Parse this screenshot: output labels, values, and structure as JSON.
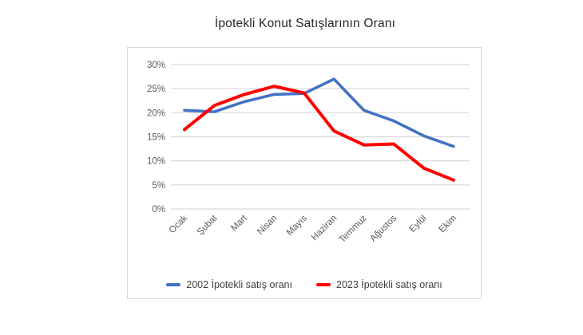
{
  "title": "İpotekli Konut Satışlarının Oranı",
  "chart_data": {
    "type": "line",
    "title": "İpotekli Konut Satışlarının Oranı",
    "categories": [
      "Ocak",
      "Şubat",
      "Mart",
      "Nisan",
      "Mayıs",
      "Haziran",
      "Temmuz",
      "Ağustos",
      "Eylül",
      "Ekim"
    ],
    "series": [
      {
        "name": "2002 İpotekli satış oranı",
        "color": "#4472C4",
        "values": [
          20.5,
          20.2,
          22.3,
          23.8,
          24.0,
          27.0,
          20.5,
          18.3,
          15.2,
          13.0
        ]
      },
      {
        "name": "2023 İpotekli satış oranı",
        "color": "#FF0000",
        "values": [
          16.5,
          21.5,
          23.8,
          25.5,
          24.1,
          16.2,
          13.3,
          13.5,
          8.5,
          6.0
        ]
      }
    ],
    "xlabel": "",
    "ylabel": "",
    "ylim": [
      0,
      30
    ],
    "yticks": [
      {
        "value": 0,
        "label": "0%"
      },
      {
        "value": 5,
        "label": "5%"
      },
      {
        "value": 10,
        "label": "10%"
      },
      {
        "value": 15,
        "label": "15%"
      },
      {
        "value": 20,
        "label": "20%"
      },
      {
        "value": 25,
        "label": "25%"
      },
      {
        "value": 30,
        "label": "30%"
      }
    ],
    "grid": true,
    "legend_position": "bottom"
  },
  "colors": {
    "gridline": "#d9d9d9",
    "panel_border": "#d9d9d9",
    "axis_text": "#595959",
    "title_text": "#262626",
    "legend_text": "#404040"
  }
}
